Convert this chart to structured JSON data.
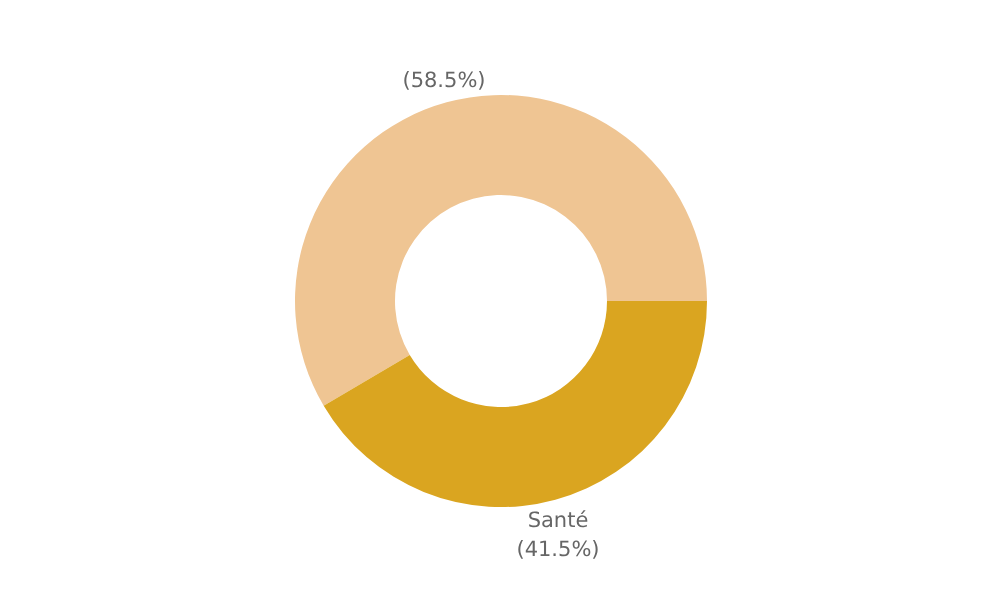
{
  "chart_data": {
    "type": "donut",
    "categories": [
      null,
      "Santé"
    ],
    "values": [
      58.5,
      41.5
    ],
    "colors": [
      "#efc593",
      "#daa520"
    ],
    "value_labels": [
      "(58.5%)",
      "(41.5%)"
    ]
  }
}
